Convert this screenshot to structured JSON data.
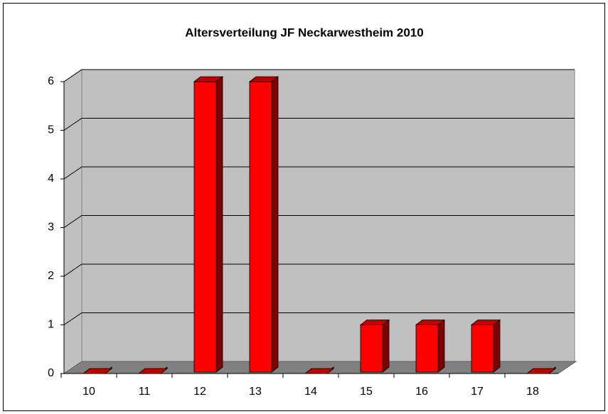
{
  "chart_data": {
    "type": "bar",
    "title": "Altersverteilung JF Neckarwestheim 2010",
    "categories": [
      "10",
      "11",
      "12",
      "13",
      "14",
      "15",
      "16",
      "17",
      "18"
    ],
    "values": [
      0,
      0,
      6,
      6,
      0,
      1,
      1,
      1,
      0
    ],
    "color": "#ff0000",
    "ylim": [
      0,
      6
    ],
    "yticks": [
      0,
      1,
      2,
      3,
      4,
      5,
      6
    ],
    "grid": true
  }
}
